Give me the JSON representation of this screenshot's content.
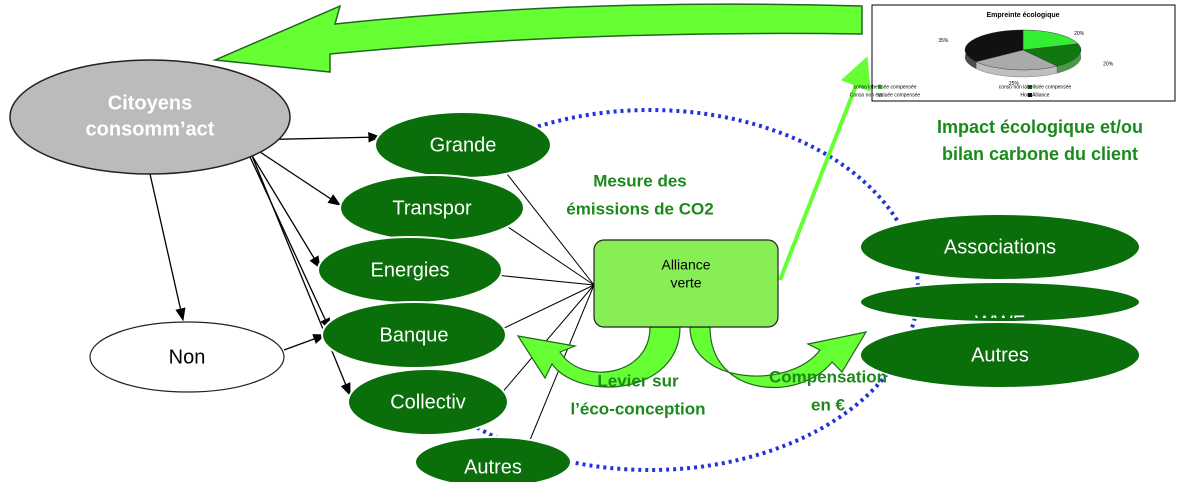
{
  "nodes": {
    "citoyens": {
      "label": [
        "Citoyens",
        "consomm’act"
      ]
    },
    "non": {
      "label": "Non"
    },
    "grande": {
      "label": "Grande"
    },
    "transport": {
      "label": "Transpor"
    },
    "energies": {
      "label": "Energies"
    },
    "banque": {
      "label": "Banque"
    },
    "collectiv": {
      "label": "Collectiv"
    },
    "autres_left": {
      "label": "Autres"
    },
    "alliance": {
      "label": [
        "Alliance",
        "verte"
      ]
    },
    "associations": {
      "label": "Associations"
    },
    "wwf": {
      "label": "WWF"
    },
    "autres_right": {
      "label": "Autres"
    }
  },
  "annotations": {
    "mesure": [
      "Mesure des",
      "émissions de CO2"
    ],
    "impact": [
      "Impact écologique et/ou",
      "bilan carbone du client"
    ],
    "levier": [
      "Levier sur",
      "l’éco-conception"
    ],
    "compensation": [
      "Compensation",
      "en €"
    ]
  },
  "inset_chart": {
    "type": "pie",
    "title": "Empreinte écologique",
    "categories": [
      "conso labellisée compensée",
      "conso non labellisée compensée",
      "Conso non évaluée compensée",
      "Hors Alliance"
    ],
    "values": [
      20,
      20,
      25,
      35
    ],
    "value_labels": [
      "20%",
      "20%",
      "25%",
      "35%"
    ],
    "colors": [
      "#33ee33",
      "#117711",
      "#aaaaaa",
      "#111111"
    ]
  }
}
